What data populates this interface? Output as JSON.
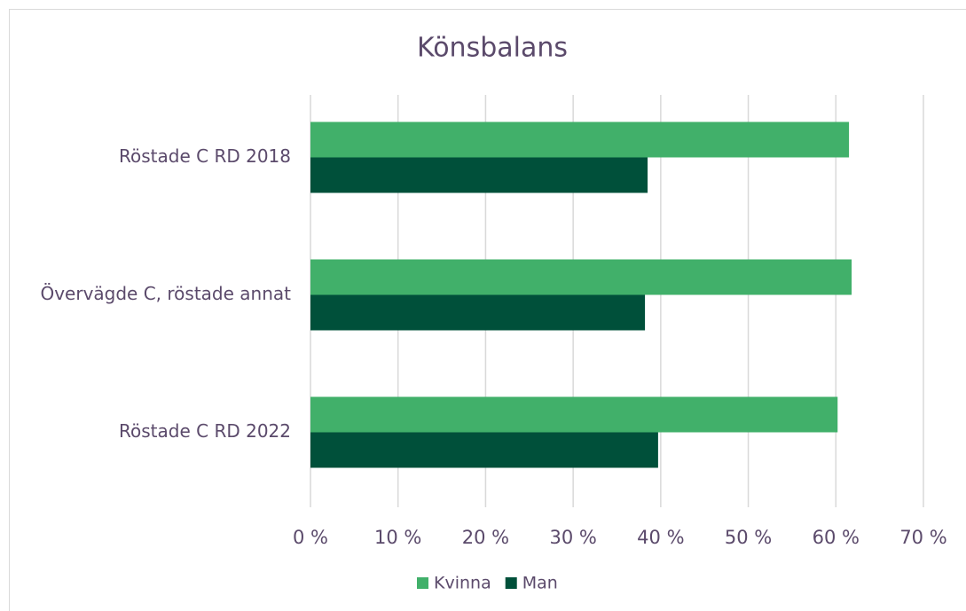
{
  "chart_data": {
    "type": "bar",
    "horizontal": true,
    "title": "Könsbalans",
    "categories": [
      "Röstade C RD 2018",
      "Övervägde C, röstade annat",
      "Röstade C RD 2022"
    ],
    "series": [
      {
        "name": "Kvinna",
        "color": "#41b06a",
        "values": [
          61.5,
          61.8,
          60.2
        ]
      },
      {
        "name": "Man",
        "color": "#00503a",
        "values": [
          38.5,
          38.2,
          39.7
        ]
      }
    ],
    "xlim": [
      0,
      70
    ],
    "xticks": [
      {
        "value": 0,
        "label": "0 %"
      },
      {
        "value": 10,
        "label": "10 %"
      },
      {
        "value": 20,
        "label": "20 %"
      },
      {
        "value": 30,
        "label": "30 %"
      },
      {
        "value": 40,
        "label": "40 %"
      },
      {
        "value": 50,
        "label": "50 %"
      },
      {
        "value": 60,
        "label": "60 %"
      },
      {
        "value": 70,
        "label": "70 %"
      }
    ],
    "grid": true,
    "legend": "bottom"
  }
}
